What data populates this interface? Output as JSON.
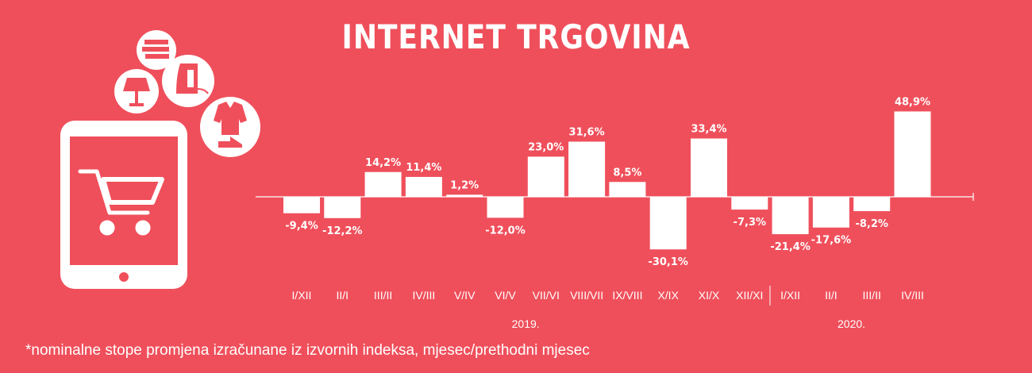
{
  "title": "INTERNET TRGOVINA",
  "footnote": "*nominalne stope promjena izračunane iz izvornih indeksa, mjesec/prethodni mjesec",
  "colors": {
    "background": "#ef4f5b",
    "bars": "#ffffff",
    "text": "#ffffff"
  },
  "icons": [
    "tablet-icon",
    "shopping-cart-icon",
    "books-icon",
    "lamp-icon",
    "iron-icon",
    "clothes-icon"
  ],
  "chart_data": {
    "type": "bar",
    "title": "INTERNET TRGOVINA",
    "categories": [
      "I/XII",
      "II/I",
      "III/II",
      "IV/III",
      "V/IV",
      "VI/V",
      "VII/VI",
      "VIII/VII",
      "IX/VIII",
      "X/IX",
      "XI/X",
      "XII/XI",
      "I/XII",
      "II/I",
      "III/II",
      "IV/III"
    ],
    "values": [
      -9.4,
      -12.2,
      14.2,
      11.4,
      1.2,
      -12.0,
      23.0,
      31.6,
      8.5,
      -30.1,
      33.4,
      -7.3,
      -21.4,
      -17.6,
      -8.2,
      48.9
    ],
    "value_labels": [
      "-9,4%",
      "-12,2%",
      "14,2%",
      "11,4%",
      "1,2%",
      "-12,0%",
      "23,0%",
      "31,6%",
      "8,5%",
      "-30,1%",
      "33,4%",
      "-7,3%",
      "-21,4%",
      "-17,6%",
      "-8,2%",
      "48,9%"
    ],
    "groups": [
      {
        "label": "2019.",
        "start": 0,
        "end": 11
      },
      {
        "label": "2020.",
        "start": 12,
        "end": 15
      }
    ],
    "xlabel": "",
    "ylabel": "",
    "grid": false
  }
}
